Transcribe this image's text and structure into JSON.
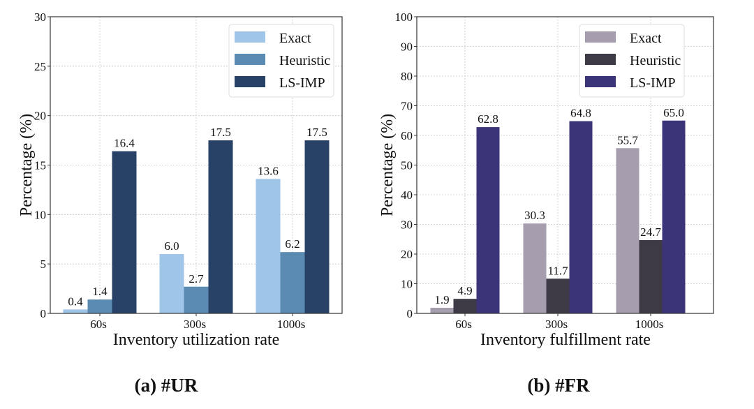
{
  "chart_data": [
    {
      "type": "bar",
      "title": "",
      "caption": "(a) #UR",
      "xlabel": "Inventory utilization rate",
      "ylabel": "Percentage (%)",
      "categories": [
        "60s",
        "300s",
        "1000s"
      ],
      "ylim": [
        0,
        30
      ],
      "yticks": [
        0,
        5,
        10,
        15,
        20,
        25,
        30
      ],
      "grid": true,
      "legend_position": "top-right",
      "series": [
        {
          "name": "Exact",
          "color": "#9fc5e8",
          "values": [
            0.4,
            6.0,
            13.6
          ],
          "labels": [
            "0.4",
            "6.0",
            "13.6"
          ]
        },
        {
          "name": "Heuristic",
          "color": "#5b8bb3",
          "values": [
            1.4,
            2.7,
            6.2
          ],
          "labels": [
            "1.4",
            "2.7",
            "6.2"
          ]
        },
        {
          "name": "LS-IMP",
          "color": "#284167",
          "values": [
            16.4,
            17.5,
            17.5
          ],
          "labels": [
            "16.4",
            "17.5",
            "17.5"
          ]
        }
      ]
    },
    {
      "type": "bar",
      "title": "",
      "caption": "(b) #FR",
      "xlabel": "Inventory fulfillment rate",
      "ylabel": "Percentage (%)",
      "categories": [
        "60s",
        "300s",
        "1000s"
      ],
      "ylim": [
        0,
        100
      ],
      "yticks": [
        0,
        10,
        20,
        30,
        40,
        50,
        60,
        70,
        80,
        90,
        100
      ],
      "grid": true,
      "legend_position": "top-right",
      "series": [
        {
          "name": "Exact",
          "color": "#a69eae",
          "values": [
            1.9,
            30.3,
            55.7
          ],
          "labels": [
            "1.9",
            "30.3",
            "55.7"
          ]
        },
        {
          "name": "Heuristic",
          "color": "#3d3a45",
          "values": [
            4.9,
            11.7,
            24.7
          ],
          "labels": [
            "4.9",
            "11.7",
            "24.7"
          ]
        },
        {
          "name": "LS-IMP",
          "color": "#3c3479",
          "values": [
            62.8,
            64.8,
            65.0
          ],
          "labels": [
            "62.8",
            "64.8",
            "65.0"
          ]
        }
      ]
    }
  ]
}
